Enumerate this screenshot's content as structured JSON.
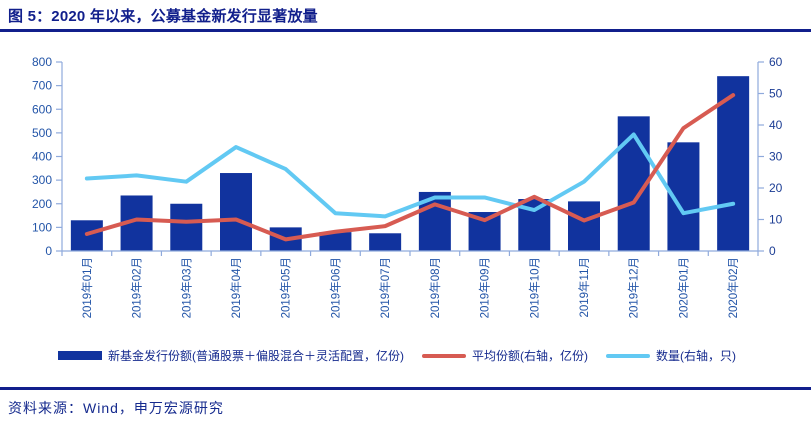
{
  "figure": {
    "title": "图 5：2020 年以来，公募基金新发行显著放量",
    "source": "资料来源：Wind，申万宏源研究"
  },
  "colors": {
    "title": "#111F8C",
    "rule": "#111F8C",
    "bar": "#11339E",
    "line_red": "#D75B52",
    "line_cyan": "#62C9F3",
    "axis_line": "#8FAADC",
    "tick_label_left": "#2355A8",
    "tick_label_right": "#1C3D94",
    "x_label": "#2355A8",
    "legend_text": "#152A8E"
  },
  "chart_data": {
    "type": "bar",
    "subtype": "bar-with-two-lines",
    "categories": [
      "2019年01月",
      "2019年02月",
      "2019年03月",
      "2019年04月",
      "2019年05月",
      "2019年06月",
      "2019年07月",
      "2019年08月",
      "2019年09月",
      "2019年10月",
      "2019年11月",
      "2019年12月",
      "2020年01月",
      "2020年02月"
    ],
    "series": [
      {
        "name": "新基金发行份额(普通股票＋偏股混合＋灵活配置，亿份)",
        "type": "bar",
        "axis": "left",
        "values": [
          130,
          235,
          200,
          330,
          100,
          80,
          75,
          250,
          165,
          220,
          210,
          570,
          460,
          740
        ]
      },
      {
        "name": "平均份额(右轴，亿份)",
        "type": "line",
        "axis": "right",
        "values": [
          5.4,
          10,
          9.3,
          10,
          3.7,
          6.1,
          7.9,
          14.8,
          9.8,
          17.2,
          9.7,
          15.4,
          39,
          49.5
        ]
      },
      {
        "name": "数量(右轴，只)",
        "type": "line",
        "axis": "right",
        "values": [
          23,
          24,
          22,
          33,
          26,
          12,
          11,
          17,
          17,
          13,
          22,
          37,
          12,
          15
        ]
      }
    ],
    "left_axis": {
      "min": 0,
      "max": 800,
      "step": 100,
      "ticks": [
        0,
        100,
        200,
        300,
        400,
        500,
        600,
        700,
        800
      ]
    },
    "right_axis": {
      "min": 0,
      "max": 60,
      "step": 10,
      "ticks": [
        0,
        10,
        20,
        30,
        40,
        50,
        60
      ]
    },
    "grid": false,
    "legend_position": "bottom",
    "title": "图 5：2020 年以来，公募基金新发行显著放量"
  }
}
